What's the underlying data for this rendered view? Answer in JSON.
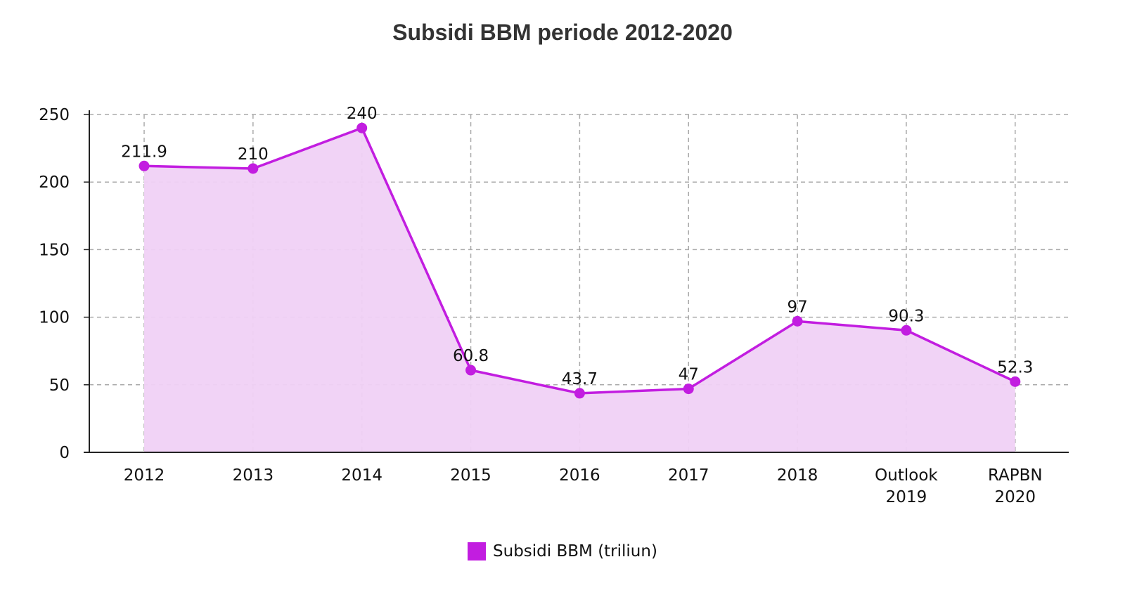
{
  "chart_data": {
    "type": "area",
    "title": "Subsidi BBM periode 2012-2020",
    "categories": [
      [
        "2012"
      ],
      [
        "2013"
      ],
      [
        "2014"
      ],
      [
        "2015"
      ],
      [
        "2016"
      ],
      [
        "2017"
      ],
      [
        "2018"
      ],
      [
        "Outlook",
        "2019"
      ],
      [
        "RAPBN",
        "2020"
      ]
    ],
    "series": [
      {
        "name": "Subsidi BBM (triliun)",
        "values": [
          211.9,
          210,
          240,
          60.8,
          43.7,
          47,
          97,
          90.3,
          52.3
        ],
        "labels": [
          "211.9",
          "210",
          "240",
          "60.8",
          "43.7",
          "47",
          "97",
          "90.3",
          "52.3"
        ]
      }
    ],
    "ylim": [
      0,
      250
    ],
    "yticks": [
      0,
      50,
      100,
      150,
      200,
      250
    ],
    "xlabel": "",
    "ylabel": "",
    "grid": true,
    "legend_position": "bottom",
    "colors": {
      "line": "#c21de0",
      "fill": "#f0d1f6",
      "grid": "#aaaaaa",
      "axis": "#222222"
    }
  }
}
